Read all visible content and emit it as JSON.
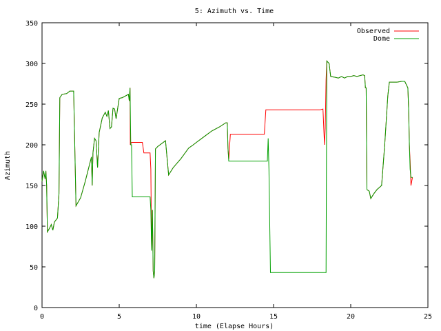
{
  "chart_data": {
    "type": "line",
    "title": "5: Azimuth vs. Time",
    "xlabel": "time (Elapse Hours)",
    "ylabel": "Azimuth",
    "xlim": [
      0,
      25
    ],
    "ylim": [
      0,
      350
    ],
    "xticks": [
      0,
      5,
      10,
      15,
      20,
      25
    ],
    "yticks": [
      0,
      50,
      100,
      150,
      200,
      250,
      300,
      350
    ],
    "grid": false,
    "legend": "top-right",
    "series": [
      {
        "name": "Observed",
        "color": "#ff0000",
        "points": [
          [
            0.0,
            155
          ],
          [
            0.1,
            168
          ],
          [
            0.2,
            158
          ],
          [
            0.25,
            168
          ],
          [
            0.3,
            150
          ],
          [
            0.35,
            93
          ],
          [
            0.5,
            98
          ],
          [
            0.6,
            102
          ],
          [
            0.7,
            95
          ],
          [
            0.8,
            105
          ],
          [
            1.0,
            110
          ],
          [
            1.1,
            140
          ],
          [
            1.15,
            258
          ],
          [
            1.3,
            262
          ],
          [
            1.6,
            263
          ],
          [
            1.8,
            266
          ],
          [
            2.05,
            266
          ],
          [
            2.2,
            125
          ],
          [
            2.5,
            135
          ],
          [
            2.8,
            155
          ],
          [
            3.0,
            170
          ],
          [
            3.2,
            185
          ],
          [
            3.25,
            150
          ],
          [
            3.3,
            190
          ],
          [
            3.4,
            208
          ],
          [
            3.5,
            205
          ],
          [
            3.6,
            172
          ],
          [
            3.7,
            215
          ],
          [
            3.9,
            233
          ],
          [
            4.1,
            240
          ],
          [
            4.2,
            235
          ],
          [
            4.3,
            242
          ],
          [
            4.4,
            220
          ],
          [
            4.5,
            222
          ],
          [
            4.6,
            245
          ],
          [
            4.7,
            244
          ],
          [
            4.8,
            232
          ],
          [
            5.0,
            257
          ],
          [
            5.2,
            258
          ],
          [
            5.4,
            260
          ],
          [
            5.6,
            262
          ],
          [
            5.65,
            254
          ],
          [
            5.7,
            270
          ],
          [
            5.72,
            200
          ],
          [
            5.8,
            203
          ],
          [
            6.5,
            203
          ],
          [
            6.6,
            190
          ],
          [
            7.0,
            190
          ],
          [
            7.05,
            170
          ],
          [
            7.1,
            70
          ],
          [
            7.15,
            120
          ],
          [
            7.2,
            45
          ],
          [
            7.25,
            36
          ],
          [
            7.3,
            45
          ],
          [
            7.35,
            195
          ],
          [
            7.5,
            198
          ],
          [
            8.0,
            205
          ],
          [
            8.2,
            163
          ],
          [
            8.5,
            172
          ],
          [
            9.0,
            183
          ],
          [
            9.5,
            196
          ],
          [
            9.8,
            200
          ],
          [
            10.0,
            203
          ],
          [
            10.5,
            210
          ],
          [
            11.0,
            217
          ],
          [
            11.5,
            222
          ],
          [
            11.9,
            227
          ],
          [
            12.0,
            227
          ],
          [
            12.05,
            195
          ],
          [
            12.1,
            182
          ],
          [
            12.2,
            213
          ],
          [
            14.4,
            213
          ],
          [
            14.5,
            243
          ],
          [
            18.0,
            243
          ],
          [
            18.2,
            244
          ],
          [
            18.3,
            200
          ],
          [
            18.35,
            220
          ],
          [
            18.4,
            280
          ],
          [
            18.45,
            303
          ],
          [
            18.6,
            300
          ],
          [
            18.7,
            284
          ],
          [
            19.0,
            283
          ],
          [
            19.2,
            282
          ],
          [
            19.4,
            284
          ],
          [
            19.6,
            282
          ],
          [
            19.8,
            284
          ],
          [
            20.0,
            284
          ],
          [
            20.2,
            285
          ],
          [
            20.4,
            284
          ],
          [
            20.8,
            286
          ],
          [
            20.9,
            285
          ],
          [
            20.95,
            270
          ],
          [
            21.0,
            270
          ],
          [
            21.05,
            145
          ],
          [
            21.2,
            143
          ],
          [
            21.3,
            134
          ],
          [
            21.5,
            140
          ],
          [
            21.7,
            145
          ],
          [
            22.0,
            150
          ],
          [
            22.2,
            200
          ],
          [
            22.4,
            260
          ],
          [
            22.5,
            277
          ],
          [
            23.0,
            277
          ],
          [
            23.3,
            278
          ],
          [
            23.5,
            278
          ],
          [
            23.7,
            270
          ],
          [
            23.75,
            245
          ],
          [
            23.8,
            200
          ],
          [
            23.85,
            180
          ],
          [
            23.9,
            150
          ],
          [
            24.0,
            160
          ]
        ]
      },
      {
        "name": "Dome",
        "color": "#00a000",
        "points": [
          [
            0.0,
            155
          ],
          [
            0.1,
            168
          ],
          [
            0.2,
            158
          ],
          [
            0.25,
            168
          ],
          [
            0.3,
            150
          ],
          [
            0.35,
            93
          ],
          [
            0.5,
            98
          ],
          [
            0.6,
            102
          ],
          [
            0.7,
            95
          ],
          [
            0.8,
            105
          ],
          [
            1.0,
            110
          ],
          [
            1.1,
            140
          ],
          [
            1.15,
            258
          ],
          [
            1.3,
            262
          ],
          [
            1.6,
            263
          ],
          [
            1.8,
            266
          ],
          [
            2.05,
            266
          ],
          [
            2.2,
            125
          ],
          [
            2.5,
            135
          ],
          [
            2.8,
            155
          ],
          [
            3.0,
            170
          ],
          [
            3.2,
            185
          ],
          [
            3.25,
            150
          ],
          [
            3.3,
            190
          ],
          [
            3.4,
            208
          ],
          [
            3.5,
            205
          ],
          [
            3.6,
            172
          ],
          [
            3.7,
            215
          ],
          [
            3.9,
            233
          ],
          [
            4.1,
            240
          ],
          [
            4.2,
            235
          ],
          [
            4.3,
            242
          ],
          [
            4.4,
            220
          ],
          [
            4.5,
            222
          ],
          [
            4.6,
            245
          ],
          [
            4.7,
            244
          ],
          [
            4.8,
            232
          ],
          [
            5.0,
            257
          ],
          [
            5.2,
            258
          ],
          [
            5.4,
            260
          ],
          [
            5.6,
            262
          ],
          [
            5.65,
            254
          ],
          [
            5.7,
            270
          ],
          [
            5.75,
            200
          ],
          [
            5.8,
            200
          ],
          [
            5.85,
            136
          ],
          [
            6.9,
            136
          ],
          [
            7.0,
            136
          ],
          [
            7.05,
            120
          ],
          [
            7.1,
            70
          ],
          [
            7.15,
            120
          ],
          [
            7.2,
            45
          ],
          [
            7.25,
            36
          ],
          [
            7.3,
            45
          ],
          [
            7.35,
            195
          ],
          [
            7.5,
            198
          ],
          [
            8.0,
            205
          ],
          [
            8.2,
            163
          ],
          [
            8.5,
            172
          ],
          [
            9.0,
            183
          ],
          [
            9.5,
            196
          ],
          [
            9.8,
            200
          ],
          [
            10.0,
            203
          ],
          [
            10.5,
            210
          ],
          [
            11.0,
            217
          ],
          [
            11.5,
            222
          ],
          [
            11.9,
            227
          ],
          [
            12.0,
            227
          ],
          [
            12.05,
            195
          ],
          [
            12.1,
            180
          ],
          [
            12.2,
            180
          ],
          [
            14.6,
            180
          ],
          [
            14.65,
            208
          ],
          [
            14.7,
            170
          ],
          [
            14.8,
            43
          ],
          [
            18.4,
            43
          ],
          [
            18.45,
            303
          ],
          [
            18.6,
            300
          ],
          [
            18.7,
            284
          ],
          [
            19.0,
            283
          ],
          [
            19.2,
            282
          ],
          [
            19.4,
            284
          ],
          [
            19.6,
            282
          ],
          [
            19.8,
            284
          ],
          [
            20.0,
            284
          ],
          [
            20.2,
            285
          ],
          [
            20.4,
            284
          ],
          [
            20.8,
            286
          ],
          [
            20.9,
            285
          ],
          [
            20.95,
            270
          ],
          [
            21.0,
            270
          ],
          [
            21.05,
            145
          ],
          [
            21.2,
            143
          ],
          [
            21.3,
            134
          ],
          [
            21.5,
            140
          ],
          [
            21.7,
            145
          ],
          [
            22.0,
            150
          ],
          [
            22.2,
            200
          ],
          [
            22.4,
            260
          ],
          [
            22.5,
            277
          ],
          [
            23.0,
            277
          ],
          [
            23.3,
            278
          ],
          [
            23.5,
            278
          ],
          [
            23.7,
            270
          ],
          [
            23.75,
            245
          ],
          [
            23.8,
            200
          ],
          [
            23.85,
            170
          ],
          [
            23.9,
            160
          ],
          [
            24.0,
            160
          ]
        ]
      }
    ]
  }
}
